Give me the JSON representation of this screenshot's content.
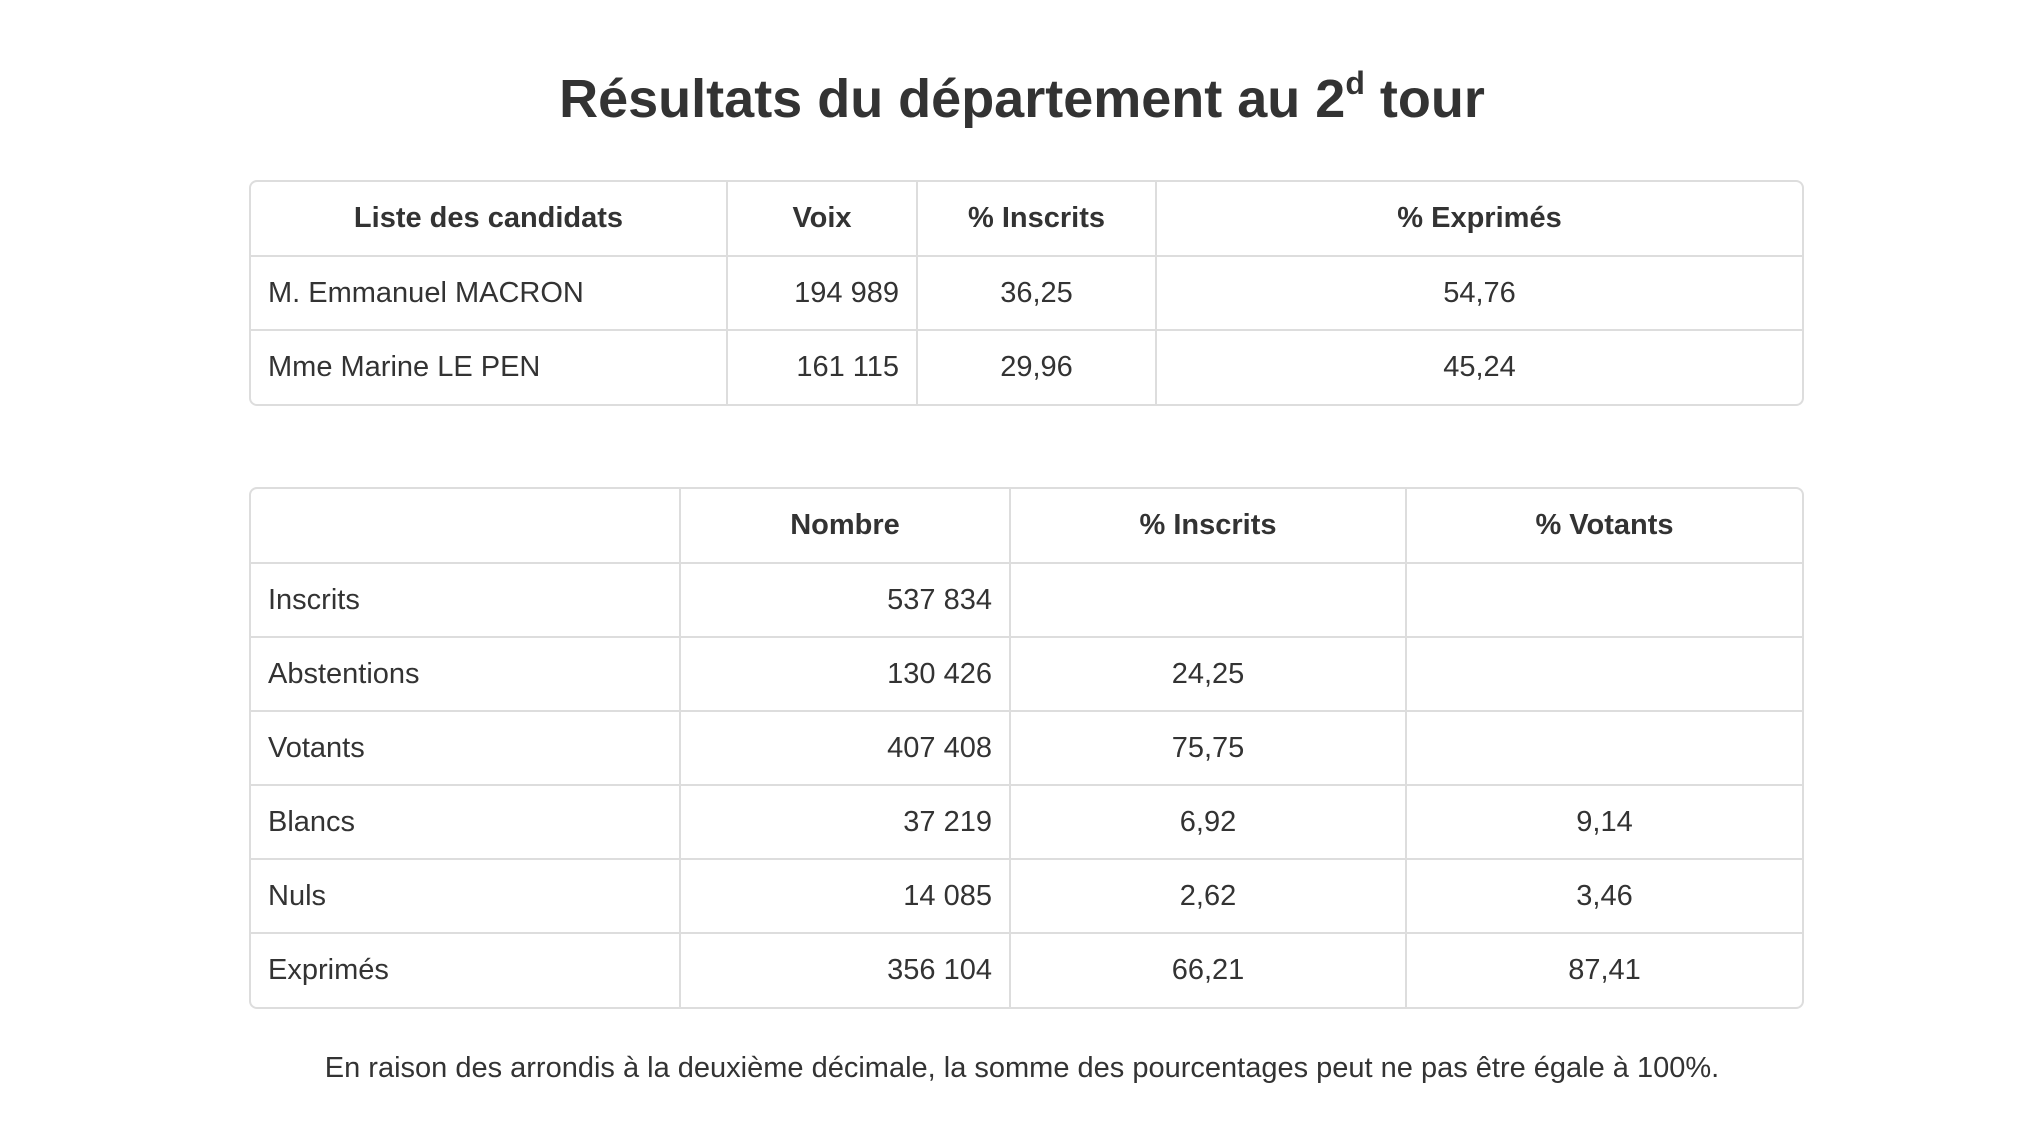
{
  "title": {
    "text": "Résultats du département au 2",
    "sup": "d",
    "suffix": " tour"
  },
  "candidates_table": {
    "headers": [
      "Liste des candidats",
      "Voix",
      "% Inscrits",
      "% Exprimés"
    ],
    "rows": [
      {
        "name": "M. Emmanuel MACRON",
        "voix": "194 989",
        "pct_inscrits": "36,25",
        "pct_exprimes": "54,76"
      },
      {
        "name": "Mme Marine LE PEN",
        "voix": "161 115",
        "pct_inscrits": "29,96",
        "pct_exprimes": "45,24"
      }
    ]
  },
  "stats_table": {
    "headers": [
      "",
      "Nombre",
      "% Inscrits",
      "% Votants"
    ],
    "rows": [
      {
        "label": "Inscrits",
        "nombre": "537 834",
        "pct_inscrits": "",
        "pct_votants": ""
      },
      {
        "label": "Abstentions",
        "nombre": "130 426",
        "pct_inscrits": "24,25",
        "pct_votants": ""
      },
      {
        "label": "Votants",
        "nombre": "407 408",
        "pct_inscrits": "75,75",
        "pct_votants": ""
      },
      {
        "label": "Blancs",
        "nombre": "37 219",
        "pct_inscrits": "6,92",
        "pct_votants": "9,14"
      },
      {
        "label": "Nuls",
        "nombre": "14 085",
        "pct_inscrits": "2,62",
        "pct_votants": "3,46"
      },
      {
        "label": "Exprimés",
        "nombre": "356 104",
        "pct_inscrits": "66,21",
        "pct_votants": "87,41"
      }
    ]
  },
  "footnote": "En raison des arrondis à la deuxième décimale, la somme des pourcentages peut ne pas être égale à 100%."
}
